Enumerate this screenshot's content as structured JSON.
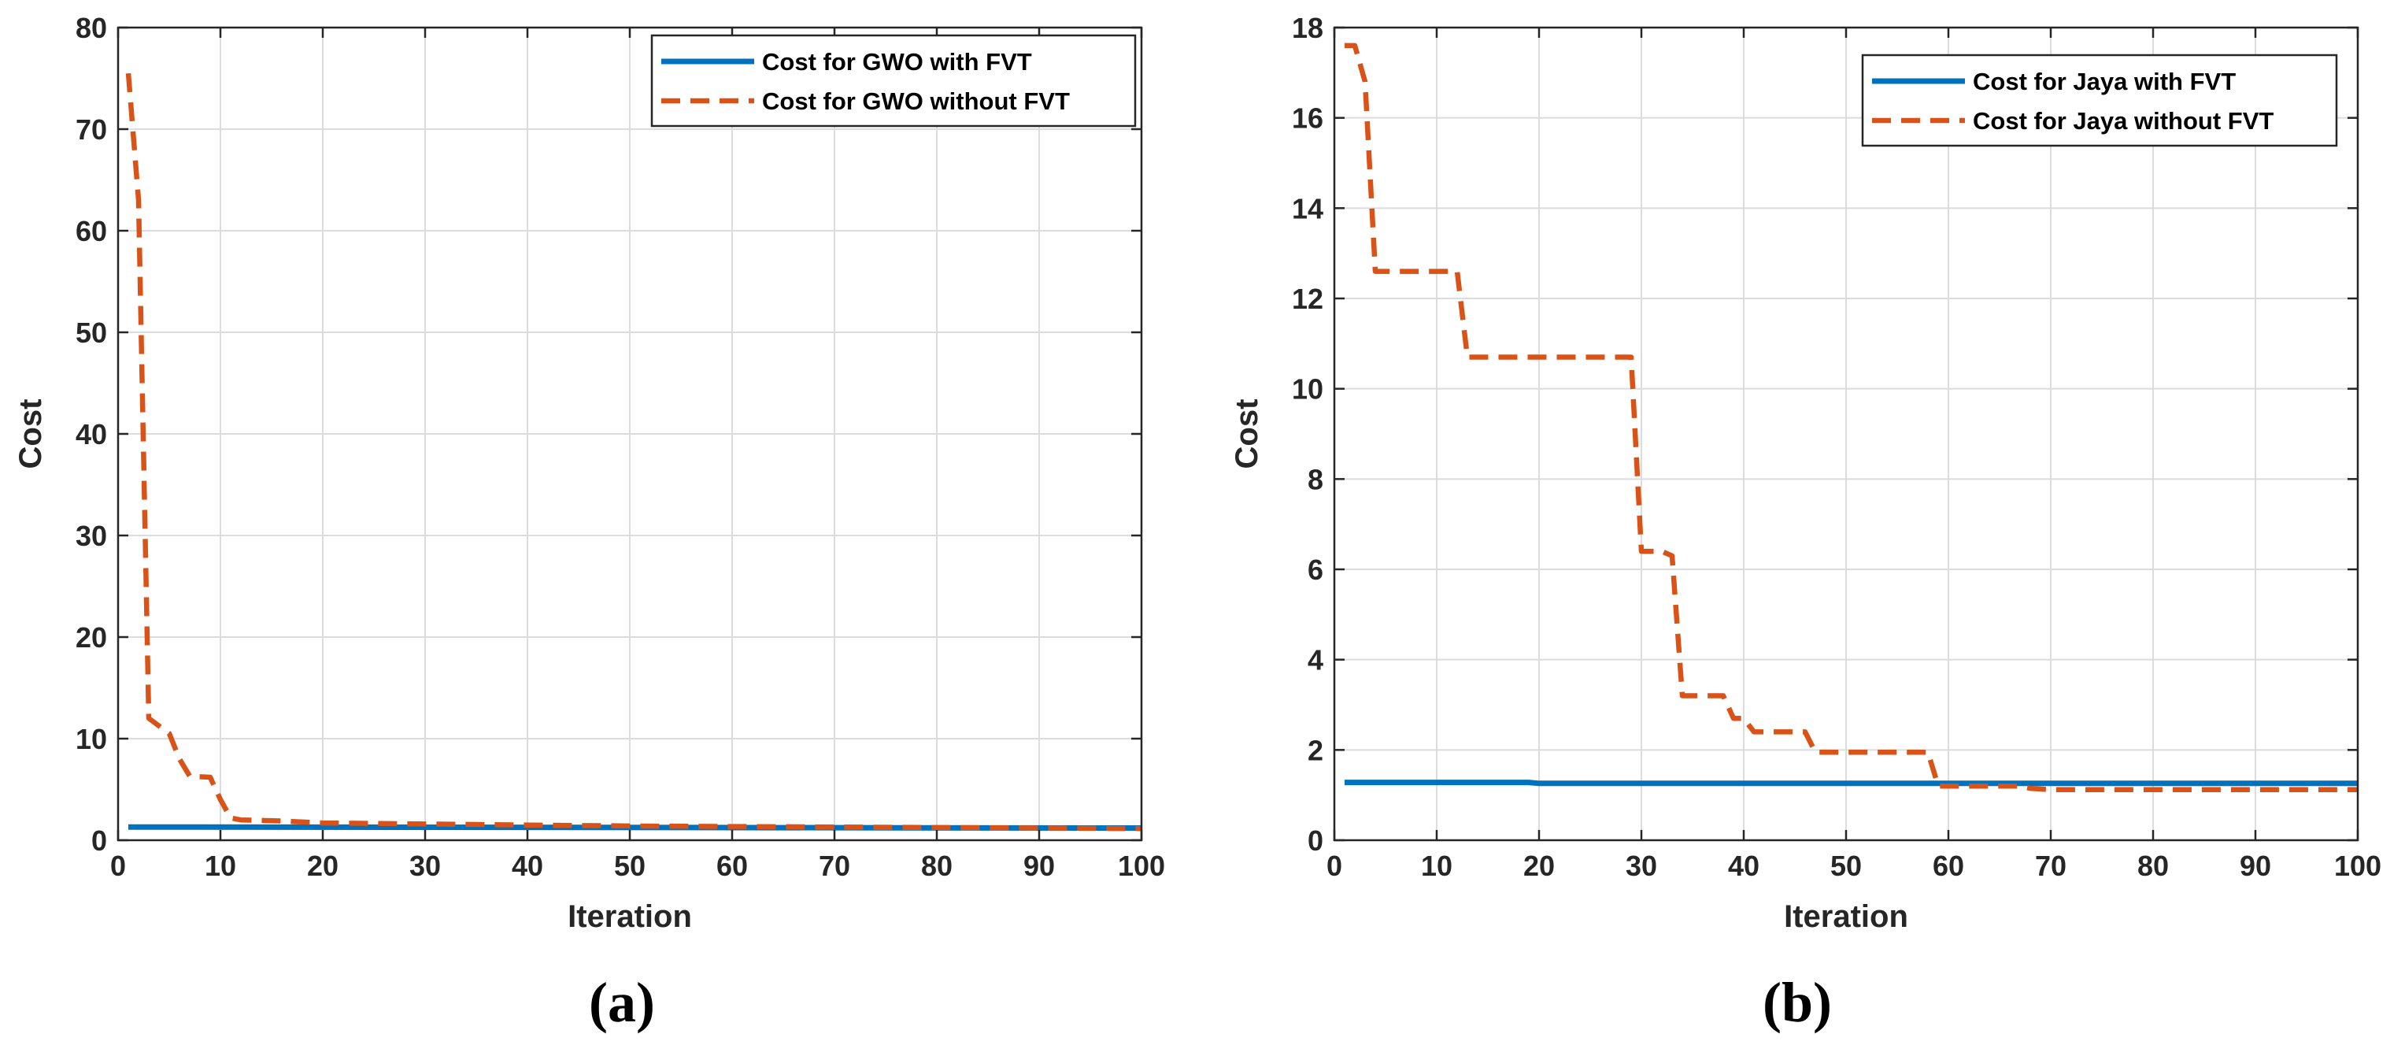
{
  "chart_data": [
    {
      "type": "line",
      "panel_label": "(a)",
      "xlabel": "Iteration",
      "ylabel": "Cost",
      "xlim": [
        0,
        100
      ],
      "ylim": [
        0,
        80
      ],
      "xticks": [
        0,
        10,
        20,
        30,
        40,
        50,
        60,
        70,
        80,
        90,
        100
      ],
      "yticks": [
        0,
        10,
        20,
        30,
        40,
        50,
        60,
        70,
        80
      ],
      "grid": true,
      "legend_position": "top-right",
      "series": [
        {
          "name": "Cost for GWO with FVT",
          "color": "#0072BD",
          "style": "solid",
          "points": [
            [
              1,
              1.3
            ],
            [
              100,
              1.2
            ]
          ]
        },
        {
          "name": "Cost for GWO without FVT",
          "color": "#D95319",
          "style": "dashed",
          "points": [
            [
              1,
              75.5
            ],
            [
              2,
              63
            ],
            [
              3,
              12
            ],
            [
              5,
              10.5
            ],
            [
              6,
              8
            ],
            [
              7,
              6.3
            ],
            [
              9,
              6.2
            ],
            [
              10,
              4
            ],
            [
              11,
              2.2
            ],
            [
              12,
              2
            ],
            [
              16,
              1.9
            ],
            [
              20,
              1.7
            ],
            [
              30,
              1.6
            ],
            [
              40,
              1.5
            ],
            [
              50,
              1.4
            ],
            [
              60,
              1.35
            ],
            [
              70,
              1.3
            ],
            [
              80,
              1.25
            ],
            [
              90,
              1.2
            ],
            [
              100,
              1.15
            ]
          ]
        }
      ]
    },
    {
      "type": "line",
      "panel_label": "(b)",
      "xlabel": "Iteration",
      "ylabel": "Cost",
      "xlim": [
        0,
        100
      ],
      "ylim": [
        0,
        18
      ],
      "xticks": [
        0,
        10,
        20,
        30,
        40,
        50,
        60,
        70,
        80,
        90,
        100
      ],
      "yticks": [
        0,
        2,
        4,
        6,
        8,
        10,
        12,
        14,
        16,
        18
      ],
      "grid": true,
      "legend_position": "top-right",
      "series": [
        {
          "name": "Cost for Jaya with FVT",
          "color": "#0072BD",
          "style": "solid",
          "points": [
            [
              1,
              1.28
            ],
            [
              19,
              1.28
            ],
            [
              20,
              1.26
            ],
            [
              100,
              1.26
            ]
          ]
        },
        {
          "name": "Cost for Jaya without FVT",
          "color": "#D95319",
          "style": "dashed",
          "points": [
            [
              1,
              17.6
            ],
            [
              2,
              17.6
            ],
            [
              3,
              16.8
            ],
            [
              4,
              12.6
            ],
            [
              12,
              12.6
            ],
            [
              13,
              10.7
            ],
            [
              29,
              10.7
            ],
            [
              30,
              6.4
            ],
            [
              32,
              6.4
            ],
            [
              33,
              6.3
            ],
            [
              34,
              3.2
            ],
            [
              38,
              3.2
            ],
            [
              39,
              2.7
            ],
            [
              40,
              2.7
            ],
            [
              41,
              2.4
            ],
            [
              46,
              2.4
            ],
            [
              47,
              1.95
            ],
            [
              58,
              1.95
            ],
            [
              59,
              1.2
            ],
            [
              67,
              1.2
            ],
            [
              68,
              1.15
            ],
            [
              70,
              1.12
            ],
            [
              100,
              1.12
            ]
          ]
        }
      ]
    }
  ]
}
